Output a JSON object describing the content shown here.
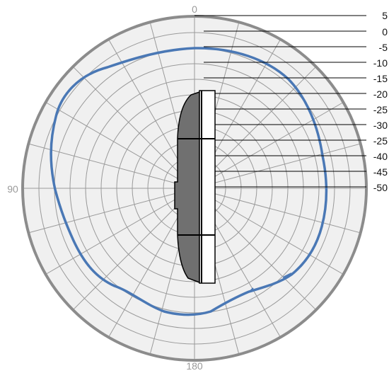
{
  "angle_labels": {
    "top": "0",
    "left": "90",
    "bottom": "180"
  },
  "scale_labels": [
    "5",
    "0",
    "-5",
    "-10",
    "-15",
    "-20",
    "-25",
    "-30",
    "-25",
    "-40",
    "-45",
    "-50"
  ],
  "colors": {
    "plot_fill": "#f0f0f0",
    "grid_line": "#9a9a9a",
    "outer_ring": "#8c8c8c",
    "pattern_curve": "#4a78b5",
    "device_body": "#707070",
    "device_panel": "#ffffff",
    "leader_line": "#000000"
  },
  "chart_data": {
    "type": "polar",
    "radial_unit": "dB",
    "radial_scale": [
      5,
      0,
      -5,
      -10,
      -15,
      -20,
      -25,
      -30,
      -25,
      -40,
      -45,
      -50
    ],
    "angular_labels": [
      0,
      90,
      180
    ],
    "grid": true,
    "series": [
      {
        "theta": [
          0,
          15,
          30,
          45,
          60,
          75,
          90,
          105,
          120,
          135,
          150,
          165,
          180,
          195,
          210,
          225,
          240,
          255,
          270,
          285,
          300,
          315,
          330,
          345
        ],
        "r_db": [
          -5,
          -5,
          -5,
          -5,
          -5,
          -5,
          -5,
          -6,
          -8,
          -10,
          -12,
          -12,
          -12,
          -12,
          -10,
          -8,
          -6,
          -5,
          -5,
          -5,
          -5,
          -5,
          -5,
          -5
        ]
      }
    ]
  }
}
